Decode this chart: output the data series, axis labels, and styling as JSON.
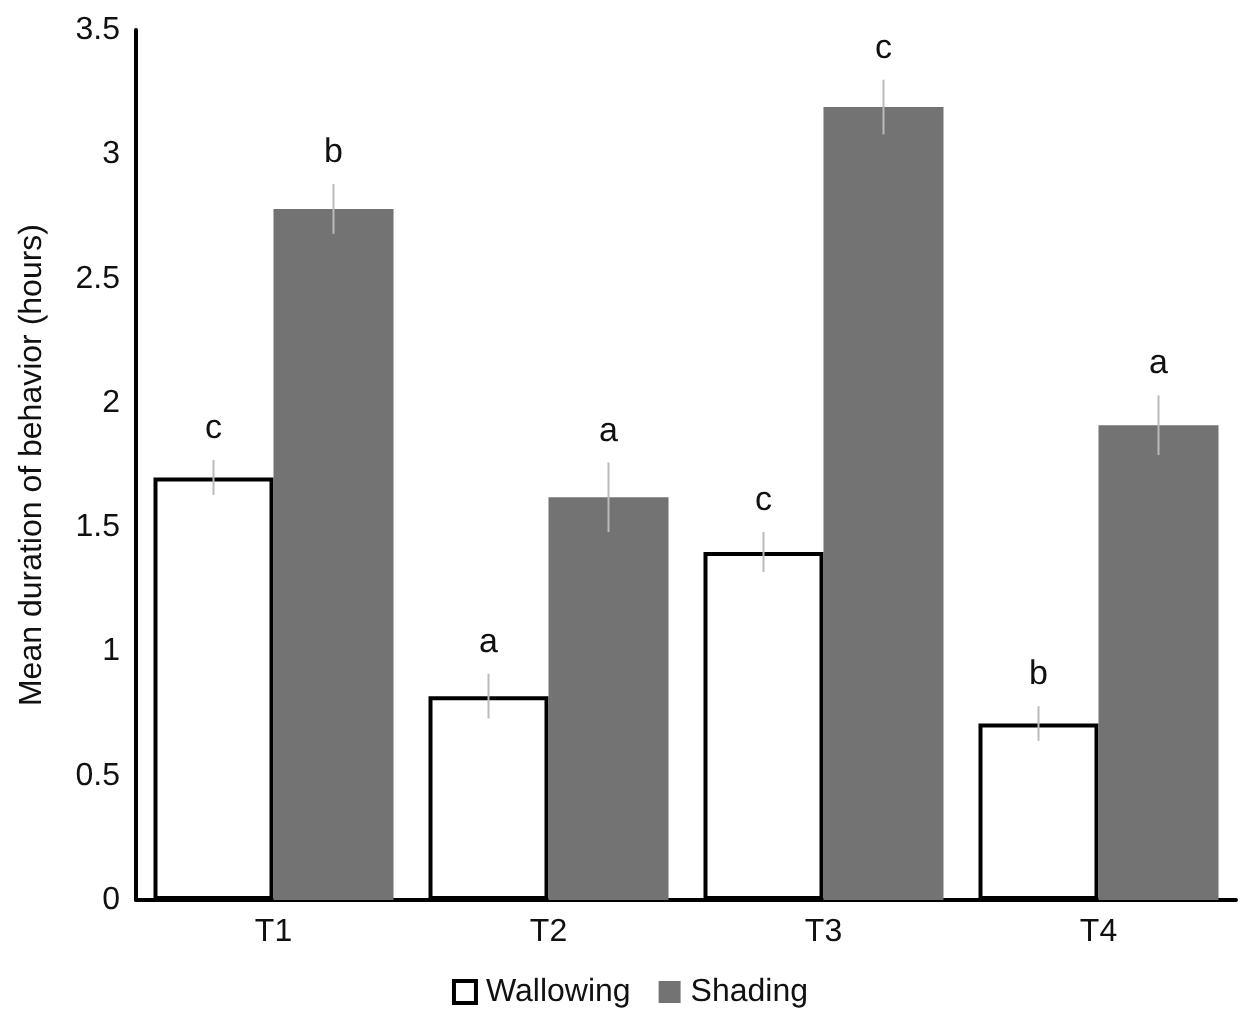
{
  "chart_data": {
    "type": "bar",
    "ylabel": "Mean duration of behavior (hours)",
    "categories": [
      "T1",
      "T2",
      "T3",
      "T4"
    ],
    "series": [
      {
        "name": "Wallowing",
        "color": "#ffffff",
        "values": [
          1.7,
          0.82,
          1.4,
          0.71
        ],
        "errors": [
          0.07,
          0.09,
          0.08,
          0.07
        ],
        "value_labels": [
          "c",
          "a",
          "c",
          "b"
        ]
      },
      {
        "name": "Shading",
        "color": "#737373",
        "values": [
          2.78,
          1.62,
          3.19,
          1.91
        ],
        "errors": [
          0.1,
          0.14,
          0.11,
          0.12
        ],
        "value_labels": [
          "b",
          "a",
          "c",
          "a"
        ]
      }
    ],
    "ylim": [
      0,
      3.5
    ],
    "yticks": [
      0,
      0.5,
      1,
      1.5,
      2,
      2.5,
      3,
      3.5
    ],
    "grid": false,
    "legend": "bottom"
  }
}
